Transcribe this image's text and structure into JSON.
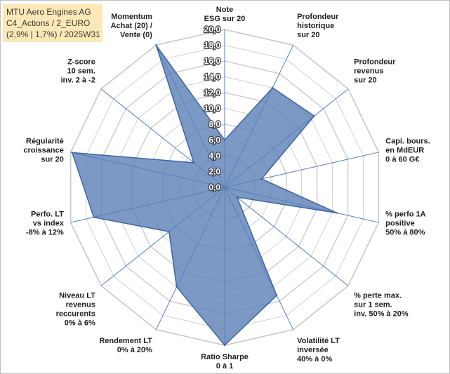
{
  "title": {
    "line1": "MTU Aero Engines AG",
    "line2": "C4_Actions / 2_EURO",
    "line3": "(2,9% | 1,7%) / 2025W31"
  },
  "chart_data": {
    "type": "radar",
    "rmin": 0,
    "rmax": 20,
    "ticks": [
      "0,0",
      "2,0",
      "4,0",
      "6,0",
      "8,0",
      "10,0",
      "12,0",
      "14,0",
      "16,0",
      "18,0",
      "20,0"
    ],
    "axes": [
      {
        "label": [
          "Note",
          "ESG sur 20"
        ],
        "value": 6
      },
      {
        "label": [
          "Profondeur",
          "historique",
          "sur 20"
        ],
        "value": 14
      },
      {
        "label": [
          "Profondeur",
          "revenus",
          "sur 20"
        ],
        "value": 14.5
      },
      {
        "label": [
          "Capi. bours.",
          "en MdEUR",
          "0 à 60 G€"
        ],
        "value": 4.8
      },
      {
        "label": [
          "% perfo 1A",
          "positive",
          "50% à 80%"
        ],
        "value": 14.6
      },
      {
        "label": [
          "% perte max.",
          "sur 1 sem.",
          "inv. 50% à 20%"
        ],
        "value": 2
      },
      {
        "label": [
          "Volatilité LT",
          "inversée",
          "40% à 0%"
        ],
        "value": 15.2
      },
      {
        "label": [
          "Ratio Sharpe",
          "0 à 1"
        ],
        "value": 20
      },
      {
        "label": [
          "Rendement LT",
          "0% à 20%"
        ],
        "value": 14
      },
      {
        "label": [
          "Niveau LT",
          "revenus",
          "reccurents",
          "0% à 6%"
        ],
        "value": 9
      },
      {
        "label": [
          "Perfo. LT",
          "vs index",
          "-8% à 12%"
        ],
        "value": 17
      },
      {
        "label": [
          "Régularité",
          "croissance",
          "sur 20"
        ],
        "value": 19.8
      },
      {
        "label": [
          "Z-score",
          "10 sem.",
          "inv. 2 à -2"
        ],
        "value": 5
      },
      {
        "label": [
          "Momentum",
          "Achat (20) /",
          "Vente (0)"
        ],
        "value": 20
      }
    ],
    "colors": {
      "fill": "#5b7fb6",
      "fill_opacity": 0.8,
      "stroke": "#3f64a8",
      "grid": "#d0d0d0",
      "spoke": "#4f7dc9"
    }
  }
}
